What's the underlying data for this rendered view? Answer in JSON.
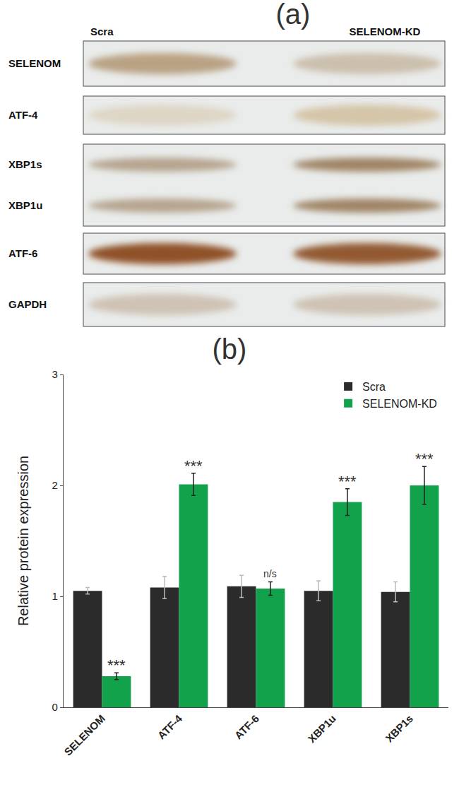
{
  "panel_a": {
    "label": "(a)",
    "columns": [
      "Scra",
      "SELENOM-KD"
    ],
    "blots": [
      {
        "labels": [
          "SELENOM"
        ]
      },
      {
        "labels": [
          "ATF-4"
        ]
      },
      {
        "labels": [
          "XBP1s",
          "XBP1u"
        ]
      },
      {
        "labels": [
          "ATF-6"
        ]
      },
      {
        "labels": [
          "GAPDH"
        ]
      }
    ]
  },
  "chart_data": {
    "type": "bar",
    "title": "(b)",
    "categories": [
      "SELENOM",
      "ATF-4",
      "ATF-6",
      "XBP1u",
      "XBP1s"
    ],
    "y_label": "Relative protein expression",
    "series": [
      {
        "name": "Scra",
        "color": "#2b2b2b",
        "values": [
          1.05,
          1.08,
          1.09,
          1.05,
          1.04
        ],
        "errors": [
          0.03,
          0.1,
          0.1,
          0.09,
          0.09
        ]
      },
      {
        "name": "SELENOM-KD",
        "color": "#12a24b",
        "values": [
          0.28,
          2.01,
          1.07,
          1.85,
          2.0
        ],
        "errors": [
          0.03,
          0.1,
          0.06,
          0.12,
          0.17
        ],
        "annotations": [
          "***",
          "***",
          "n/s",
          "***",
          "***"
        ]
      }
    ],
    "ylim": [
      0,
      3
    ],
    "yticks": [
      0,
      1,
      2,
      3
    ],
    "grid": false,
    "legend": "top right"
  }
}
